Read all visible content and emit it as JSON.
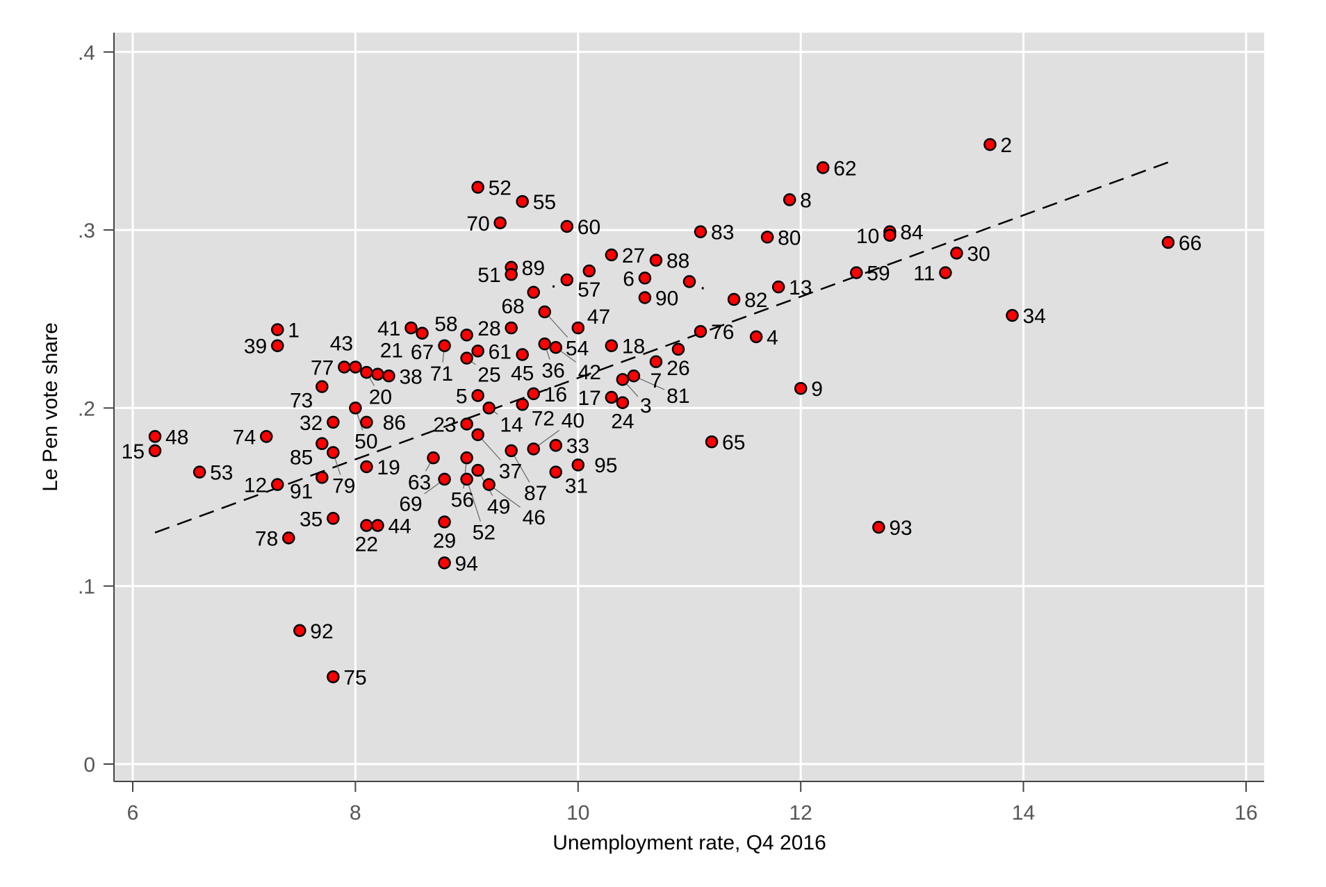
{
  "chart_data": {
    "type": "scatter",
    "title": "",
    "xlabel": "Unemployment rate, Q4 2016",
    "ylabel": "Le Pen vote share",
    "xlim": [
      6,
      16
    ],
    "ylim": [
      0,
      0.4
    ],
    "xticks": [
      6,
      8,
      10,
      12,
      14,
      16
    ],
    "xtick_labels": [
      "6",
      "8",
      "10",
      "12",
      "14",
      "16"
    ],
    "yticks": [
      0,
      0.1,
      0.2,
      0.3,
      0.4
    ],
    "ytick_labels": [
      "0",
      ".1",
      ".2",
      ".3",
      ".4"
    ],
    "grid": true,
    "marker_color": "#ff0000",
    "background": "#e0e0e0",
    "fit_line": {
      "style": "dashed",
      "x": [
        6.2,
        15.3
      ],
      "y": [
        0.13,
        0.338
      ]
    },
    "points": [
      {
        "label": "2",
        "x": 13.7,
        "y": 0.348
      },
      {
        "label": "62",
        "x": 12.2,
        "y": 0.335
      },
      {
        "label": "8",
        "x": 11.9,
        "y": 0.317
      },
      {
        "label": "52",
        "x": 9.1,
        "y": 0.324
      },
      {
        "label": "55",
        "x": 9.5,
        "y": 0.316
      },
      {
        "label": "70",
        "x": 9.3,
        "y": 0.304
      },
      {
        "label": "60",
        "x": 9.9,
        "y": 0.302
      },
      {
        "label": "83",
        "x": 11.1,
        "y": 0.299
      },
      {
        "label": "80",
        "x": 11.7,
        "y": 0.296
      },
      {
        "label": "84",
        "x": 12.8,
        "y": 0.299
      },
      {
        "label": "10",
        "x": 12.8,
        "y": 0.297
      },
      {
        "label": "30",
        "x": 13.4,
        "y": 0.287
      },
      {
        "label": "66",
        "x": 15.3,
        "y": 0.293
      },
      {
        "label": "27",
        "x": 10.3,
        "y": 0.286
      },
      {
        "label": "88",
        "x": 10.7,
        "y": 0.283
      },
      {
        "label": "89",
        "x": 9.4,
        "y": 0.279
      },
      {
        "label": "51",
        "x": 9.4,
        "y": 0.275
      },
      {
        "label": "57",
        "x": 10.1,
        "y": 0.277
      },
      {
        "label": "6",
        "x": 10.6,
        "y": 0.273
      },
      {
        "label": ".",
        "x": 9.9,
        "y": 0.272
      },
      {
        "label": ".",
        "x": 11.0,
        "y": 0.271
      },
      {
        "label": "59",
        "x": 12.5,
        "y": 0.276
      },
      {
        "label": "11",
        "x": 13.3,
        "y": 0.276
      },
      {
        "label": "13",
        "x": 11.8,
        "y": 0.268
      },
      {
        "label": "68",
        "x": 9.6,
        "y": 0.265
      },
      {
        "label": "90",
        "x": 10.6,
        "y": 0.262
      },
      {
        "label": "82",
        "x": 11.4,
        "y": 0.261
      },
      {
        "label": "54",
        "x": 9.7,
        "y": 0.254
      },
      {
        "label": "34",
        "x": 13.9,
        "y": 0.252
      },
      {
        "label": "1",
        "x": 7.3,
        "y": 0.244
      },
      {
        "label": "39",
        "x": 7.3,
        "y": 0.235
      },
      {
        "label": "41",
        "x": 8.5,
        "y": 0.245
      },
      {
        "label": "67",
        "x": 8.6,
        "y": 0.242
      },
      {
        "label": "71",
        "x": 8.8,
        "y": 0.235
      },
      {
        "label": "58",
        "x": 9.0,
        "y": 0.241
      },
      {
        "label": "61",
        "x": 9.1,
        "y": 0.232
      },
      {
        "label": "25",
        "x": 9.0,
        "y": 0.228
      },
      {
        "label": "28",
        "x": 9.4,
        "y": 0.245
      },
      {
        "label": "47",
        "x": 10.0,
        "y": 0.245
      },
      {
        "label": "36",
        "x": 9.7,
        "y": 0.236
      },
      {
        "label": "42",
        "x": 9.8,
        "y": 0.234
      },
      {
        "label": "45",
        "x": 9.5,
        "y": 0.23
      },
      {
        "label": "18",
        "x": 10.3,
        "y": 0.235
      },
      {
        "label": "76",
        "x": 11.1,
        "y": 0.243
      },
      {
        "label": "4",
        "x": 11.6,
        "y": 0.24
      },
      {
        "label": "26",
        "x": 10.9,
        "y": 0.233
      },
      {
        "label": "7",
        "x": 10.7,
        "y": 0.226
      },
      {
        "label": "3",
        "x": 10.4,
        "y": 0.216
      },
      {
        "label": "81",
        "x": 10.5,
        "y": 0.218
      },
      {
        "label": "17",
        "x": 10.3,
        "y": 0.206
      },
      {
        "label": "24",
        "x": 10.4,
        "y": 0.203
      },
      {
        "label": "9",
        "x": 12.0,
        "y": 0.211
      },
      {
        "label": "65",
        "x": 11.2,
        "y": 0.181
      },
      {
        "label": "93",
        "x": 12.7,
        "y": 0.133
      },
      {
        "label": "77",
        "x": 7.9,
        "y": 0.223
      },
      {
        "label": "43",
        "x": 8.0,
        "y": 0.223
      },
      {
        "label": "20",
        "x": 8.1,
        "y": 0.22
      },
      {
        "label": "21",
        "x": 8.2,
        "y": 0.219
      },
      {
        "label": "38",
        "x": 8.3,
        "y": 0.218
      },
      {
        "label": "73",
        "x": 7.7,
        "y": 0.212
      },
      {
        "label": "50",
        "x": 8.0,
        "y": 0.2
      },
      {
        "label": "32",
        "x": 7.8,
        "y": 0.192
      },
      {
        "label": "86",
        "x": 8.1,
        "y": 0.192
      },
      {
        "label": "74",
        "x": 7.2,
        "y": 0.184
      },
      {
        "label": "48",
        "x": 6.2,
        "y": 0.184
      },
      {
        "label": "15",
        "x": 6.2,
        "y": 0.176
      },
      {
        "label": "53",
        "x": 6.6,
        "y": 0.164
      },
      {
        "label": "85",
        "x": 7.7,
        "y": 0.18
      },
      {
        "label": "79",
        "x": 7.8,
        "y": 0.175
      },
      {
        "label": "19",
        "x": 8.1,
        "y": 0.167
      },
      {
        "label": "91",
        "x": 7.7,
        "y": 0.161
      },
      {
        "label": "12",
        "x": 7.3,
        "y": 0.157
      },
      {
        "label": "35",
        "x": 7.8,
        "y": 0.138
      },
      {
        "label": "22",
        "x": 8.1,
        "y": 0.134
      },
      {
        "label": "44",
        "x": 8.2,
        "y": 0.134
      },
      {
        "label": "78",
        "x": 7.4,
        "y": 0.127
      },
      {
        "label": "92",
        "x": 7.5,
        "y": 0.075
      },
      {
        "label": "75",
        "x": 7.8,
        "y": 0.049
      },
      {
        "label": "5",
        "x": 9.1,
        "y": 0.207
      },
      {
        "label": "14",
        "x": 9.2,
        "y": 0.2
      },
      {
        "label": "72",
        "x": 9.5,
        "y": 0.202
      },
      {
        "label": "16",
        "x": 9.6,
        "y": 0.208
      },
      {
        "label": "23",
        "x": 9.0,
        "y": 0.191
      },
      {
        "label": "37",
        "x": 9.1,
        "y": 0.185
      },
      {
        "label": "63",
        "x": 8.7,
        "y": 0.172
      },
      {
        "label": "56",
        "x": 9.0,
        "y": 0.172
      },
      {
        "label": "87",
        "x": 9.4,
        "y": 0.176
      },
      {
        "label": "40",
        "x": 9.6,
        "y": 0.177
      },
      {
        "label": "33",
        "x": 9.8,
        "y": 0.179
      },
      {
        "label": "49",
        "x": 9.1,
        "y": 0.165
      },
      {
        "label": "69",
        "x": 8.8,
        "y": 0.16
      },
      {
        "label": "52b",
        "x": 9.0,
        "y": 0.16
      },
      {
        "label": "46",
        "x": 9.2,
        "y": 0.157
      },
      {
        "label": "31",
        "x": 9.8,
        "y": 0.164
      },
      {
        "label": "95",
        "x": 10.0,
        "y": 0.168
      },
      {
        "label": "29",
        "x": 8.8,
        "y": 0.136
      },
      {
        "label": "94",
        "x": 8.8,
        "y": 0.113
      }
    ]
  }
}
